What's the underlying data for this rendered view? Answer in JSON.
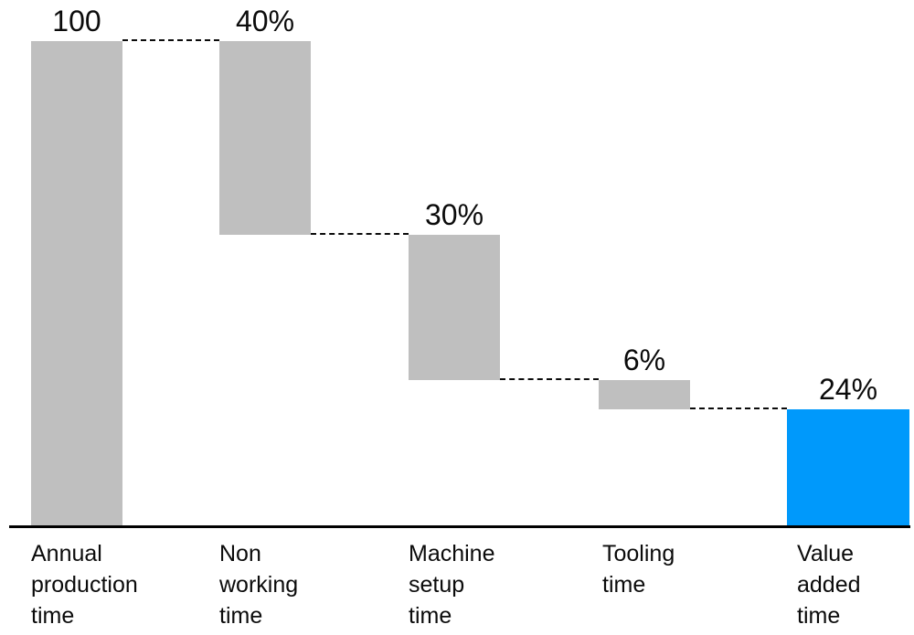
{
  "chart_data": {
    "type": "waterfall",
    "title": "",
    "unit": "%",
    "baseline_total": 100,
    "categories": [
      "Annual production time",
      "Non working time",
      "Machine setup time",
      "Tooling time",
      "Value added time"
    ],
    "values": [
      100,
      -40,
      -30,
      -6,
      24
    ],
    "segments": [
      {
        "label": "Annual production time",
        "label_lines": [
          "Annual",
          "production",
          "time"
        ],
        "value_label": "100",
        "top": 100,
        "bottom": 0,
        "color": "gray"
      },
      {
        "label": "Non working time",
        "label_lines": [
          "Non",
          "working",
          "time"
        ],
        "value_label": "40%",
        "top": 100,
        "bottom": 60,
        "color": "gray"
      },
      {
        "label": "Machine setup time",
        "label_lines": [
          "Machine",
          "setup",
          "time"
        ],
        "value_label": "30%",
        "top": 60,
        "bottom": 30,
        "color": "gray"
      },
      {
        "label": "Tooling time",
        "label_lines": [
          "Tooling",
          "time"
        ],
        "value_label": "6%",
        "top": 30,
        "bottom": 24,
        "color": "gray"
      },
      {
        "label": "Value added time",
        "label_lines": [
          "Value",
          "added",
          "time"
        ],
        "value_label": "24%",
        "top": 24,
        "bottom": 0,
        "color": "blue"
      }
    ],
    "colors": {
      "gray": "#BFBFBF",
      "blue": "#0099FB",
      "axis": "#000000",
      "text": "#0B0B0B"
    },
    "axis": {
      "baseline_visible": true,
      "y_axis_visible": false,
      "grid": false,
      "ylim": [
        0,
        100
      ]
    },
    "legend": null
  }
}
